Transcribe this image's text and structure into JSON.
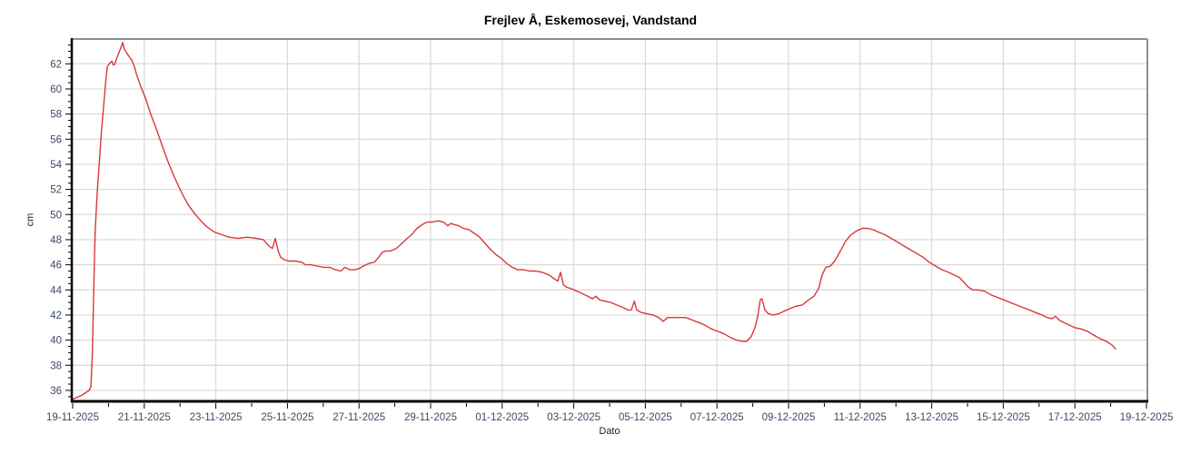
{
  "colors": {
    "line": "#d83838",
    "grid": "#d9d9d9",
    "axis": "#000000",
    "frame": "#8f8f8f",
    "tick_label": "#3b4a66",
    "axis_title": "#222222",
    "background": "#ffffff"
  },
  "chart_data": {
    "type": "line",
    "title": "Frejlev Å, Eskemosevej, Vandstand",
    "xlabel": "Dato",
    "ylabel": "cm",
    "legend": "none",
    "grid": true,
    "ylim": [
      35.2,
      63.9
    ],
    "xlim_days": [
      0,
      30
    ],
    "y_ticks": [
      36,
      38,
      40,
      42,
      44,
      46,
      48,
      50,
      52,
      54,
      56,
      58,
      60,
      62
    ],
    "y_minor_step": 0.5,
    "x_minor_step": 1,
    "x_tick_days": [
      0,
      2,
      4,
      6,
      8,
      10,
      12,
      14,
      16,
      18,
      20,
      22,
      24,
      26,
      28,
      30
    ],
    "x_tick_labels": [
      "19-11-2025",
      "21-11-2025",
      "23-11-2025",
      "25-11-2025",
      "27-11-2025",
      "29-11-2025",
      "01-12-2025",
      "03-12-2025",
      "05-12-2025",
      "07-12-2025",
      "09-12-2025",
      "11-12-2025",
      "13-12-2025",
      "15-12-2025",
      "17-12-2025",
      "19-12-2025"
    ],
    "series": [
      {
        "name": "Vandstand",
        "color": "#d83838",
        "points": [
          [
            0,
            35.3
          ],
          [
            0.25,
            35.6
          ],
          [
            0.46,
            36.0
          ],
          [
            0.51,
            36.3
          ],
          [
            0.55,
            39.0
          ],
          [
            0.58,
            43.0
          ],
          [
            0.61,
            46.5
          ],
          [
            0.63,
            48.7
          ],
          [
            0.68,
            51.5
          ],
          [
            0.74,
            54.0
          ],
          [
            0.8,
            56.5
          ],
          [
            0.87,
            58.8
          ],
          [
            0.93,
            60.8
          ],
          [
            0.97,
            61.8
          ],
          [
            1.05,
            62.1
          ],
          [
            1.1,
            62.2
          ],
          [
            1.14,
            61.9
          ],
          [
            1.18,
            62.0
          ],
          [
            1.25,
            62.6
          ],
          [
            1.32,
            63.1
          ],
          [
            1.4,
            63.7
          ],
          [
            1.44,
            63.2
          ],
          [
            1.5,
            62.9
          ],
          [
            1.57,
            62.6
          ],
          [
            1.65,
            62.3
          ],
          [
            1.72,
            61.8
          ],
          [
            1.78,
            61.2
          ],
          [
            1.9,
            60.2
          ],
          [
            2.03,
            59.3
          ],
          [
            2.18,
            58.0
          ],
          [
            2.34,
            56.8
          ],
          [
            2.51,
            55.4
          ],
          [
            2.69,
            54.0
          ],
          [
            2.87,
            52.8
          ],
          [
            3.05,
            51.7
          ],
          [
            3.22,
            50.8
          ],
          [
            3.4,
            50.1
          ],
          [
            3.58,
            49.5
          ],
          [
            3.76,
            49.0
          ],
          [
            3.96,
            48.6
          ],
          [
            4.16,
            48.4
          ],
          [
            4.37,
            48.2
          ],
          [
            4.62,
            48.1
          ],
          [
            4.87,
            48.2
          ],
          [
            5.13,
            48.1
          ],
          [
            5.33,
            48.0
          ],
          [
            5.48,
            47.5
          ],
          [
            5.58,
            47.3
          ],
          [
            5.66,
            48.1
          ],
          [
            5.74,
            47.1
          ],
          [
            5.81,
            46.6
          ],
          [
            5.91,
            46.4
          ],
          [
            6.04,
            46.3
          ],
          [
            6.22,
            46.3
          ],
          [
            6.4,
            46.2
          ],
          [
            6.5,
            46.0
          ],
          [
            6.65,
            46.0
          ],
          [
            6.83,
            45.9
          ],
          [
            7.01,
            45.8
          ],
          [
            7.18,
            45.8
          ],
          [
            7.34,
            45.6
          ],
          [
            7.49,
            45.5
          ],
          [
            7.61,
            45.8
          ],
          [
            7.74,
            45.6
          ],
          [
            7.87,
            45.6
          ],
          [
            8.0,
            45.7
          ],
          [
            8.12,
            45.9
          ],
          [
            8.27,
            46.1
          ],
          [
            8.43,
            46.2
          ],
          [
            8.55,
            46.6
          ],
          [
            8.65,
            47.0
          ],
          [
            8.76,
            47.1
          ],
          [
            8.88,
            47.1
          ],
          [
            9.04,
            47.3
          ],
          [
            9.16,
            47.6
          ],
          [
            9.31,
            48.0
          ],
          [
            9.47,
            48.4
          ],
          [
            9.62,
            48.9
          ],
          [
            9.77,
            49.2
          ],
          [
            9.9,
            49.4
          ],
          [
            10.05,
            49.4
          ],
          [
            10.2,
            49.5
          ],
          [
            10.36,
            49.4
          ],
          [
            10.48,
            49.1
          ],
          [
            10.56,
            49.3
          ],
          [
            10.66,
            49.2
          ],
          [
            10.79,
            49.1
          ],
          [
            10.91,
            48.9
          ],
          [
            11.07,
            48.8
          ],
          [
            11.22,
            48.5
          ],
          [
            11.37,
            48.2
          ],
          [
            11.52,
            47.7
          ],
          [
            11.68,
            47.2
          ],
          [
            11.83,
            46.8
          ],
          [
            11.98,
            46.5
          ],
          [
            12.13,
            46.1
          ],
          [
            12.28,
            45.8
          ],
          [
            12.44,
            45.6
          ],
          [
            12.59,
            45.6
          ],
          [
            12.77,
            45.5
          ],
          [
            12.94,
            45.5
          ],
          [
            13.12,
            45.4
          ],
          [
            13.3,
            45.2
          ],
          [
            13.45,
            44.9
          ],
          [
            13.55,
            44.7
          ],
          [
            13.63,
            45.4
          ],
          [
            13.71,
            44.4
          ],
          [
            13.81,
            44.2
          ],
          [
            13.93,
            44.1
          ],
          [
            14.09,
            43.9
          ],
          [
            14.24,
            43.7
          ],
          [
            14.39,
            43.5
          ],
          [
            14.52,
            43.3
          ],
          [
            14.62,
            43.5
          ],
          [
            14.72,
            43.2
          ],
          [
            14.87,
            43.1
          ],
          [
            15.03,
            43.0
          ],
          [
            15.2,
            42.8
          ],
          [
            15.38,
            42.6
          ],
          [
            15.51,
            42.4
          ],
          [
            15.61,
            42.4
          ],
          [
            15.69,
            43.1
          ],
          [
            15.76,
            42.4
          ],
          [
            15.89,
            42.2
          ],
          [
            16.04,
            42.1
          ],
          [
            16.22,
            42.0
          ],
          [
            16.37,
            41.8
          ],
          [
            16.5,
            41.5
          ],
          [
            16.62,
            41.8
          ],
          [
            16.78,
            41.8
          ],
          [
            16.95,
            41.8
          ],
          [
            17.13,
            41.8
          ],
          [
            17.31,
            41.6
          ],
          [
            17.49,
            41.4
          ],
          [
            17.66,
            41.2
          ],
          [
            17.84,
            40.9
          ],
          [
            18.02,
            40.7
          ],
          [
            18.2,
            40.5
          ],
          [
            18.38,
            40.2
          ],
          [
            18.55,
            40.0
          ],
          [
            18.71,
            39.9
          ],
          [
            18.83,
            39.9
          ],
          [
            18.96,
            40.3
          ],
          [
            19.06,
            41.0
          ],
          [
            19.14,
            41.9
          ],
          [
            19.21,
            43.2
          ],
          [
            19.26,
            43.3
          ],
          [
            19.34,
            42.4
          ],
          [
            19.44,
            42.1
          ],
          [
            19.57,
            42.0
          ],
          [
            19.72,
            42.1
          ],
          [
            19.87,
            42.3
          ],
          [
            20.03,
            42.5
          ],
          [
            20.2,
            42.7
          ],
          [
            20.38,
            42.8
          ],
          [
            20.56,
            43.2
          ],
          [
            20.71,
            43.5
          ],
          [
            20.84,
            44.1
          ],
          [
            20.94,
            45.2
          ],
          [
            21.04,
            45.8
          ],
          [
            21.17,
            45.9
          ],
          [
            21.29,
            46.3
          ],
          [
            21.45,
            47.1
          ],
          [
            21.6,
            47.9
          ],
          [
            21.75,
            48.4
          ],
          [
            21.9,
            48.7
          ],
          [
            22.06,
            48.9
          ],
          [
            22.21,
            48.9
          ],
          [
            22.36,
            48.8
          ],
          [
            22.51,
            48.6
          ],
          [
            22.69,
            48.4
          ],
          [
            22.87,
            48.1
          ],
          [
            23.05,
            47.8
          ],
          [
            23.22,
            47.5
          ],
          [
            23.4,
            47.2
          ],
          [
            23.58,
            46.9
          ],
          [
            23.76,
            46.6
          ],
          [
            23.93,
            46.2
          ],
          [
            24.11,
            45.9
          ],
          [
            24.29,
            45.6
          ],
          [
            24.47,
            45.4
          ],
          [
            24.62,
            45.2
          ],
          [
            24.77,
            45.0
          ],
          [
            24.9,
            44.6
          ],
          [
            25.03,
            44.2
          ],
          [
            25.15,
            44.0
          ],
          [
            25.3,
            44.0
          ],
          [
            25.48,
            43.9
          ],
          [
            25.66,
            43.6
          ],
          [
            25.84,
            43.4
          ],
          [
            26.02,
            43.2
          ],
          [
            26.19,
            43.0
          ],
          [
            26.37,
            42.8
          ],
          [
            26.55,
            42.6
          ],
          [
            26.73,
            42.4
          ],
          [
            26.9,
            42.2
          ],
          [
            27.08,
            42.0
          ],
          [
            27.23,
            41.8
          ],
          [
            27.36,
            41.7
          ],
          [
            27.46,
            41.9
          ],
          [
            27.56,
            41.6
          ],
          [
            27.69,
            41.4
          ],
          [
            27.84,
            41.2
          ],
          [
            27.99,
            41.0
          ],
          [
            28.17,
            40.9
          ],
          [
            28.35,
            40.7
          ],
          [
            28.53,
            40.4
          ],
          [
            28.71,
            40.1
          ],
          [
            28.88,
            39.9
          ],
          [
            29.04,
            39.6
          ],
          [
            29.14,
            39.3
          ]
        ]
      }
    ]
  }
}
